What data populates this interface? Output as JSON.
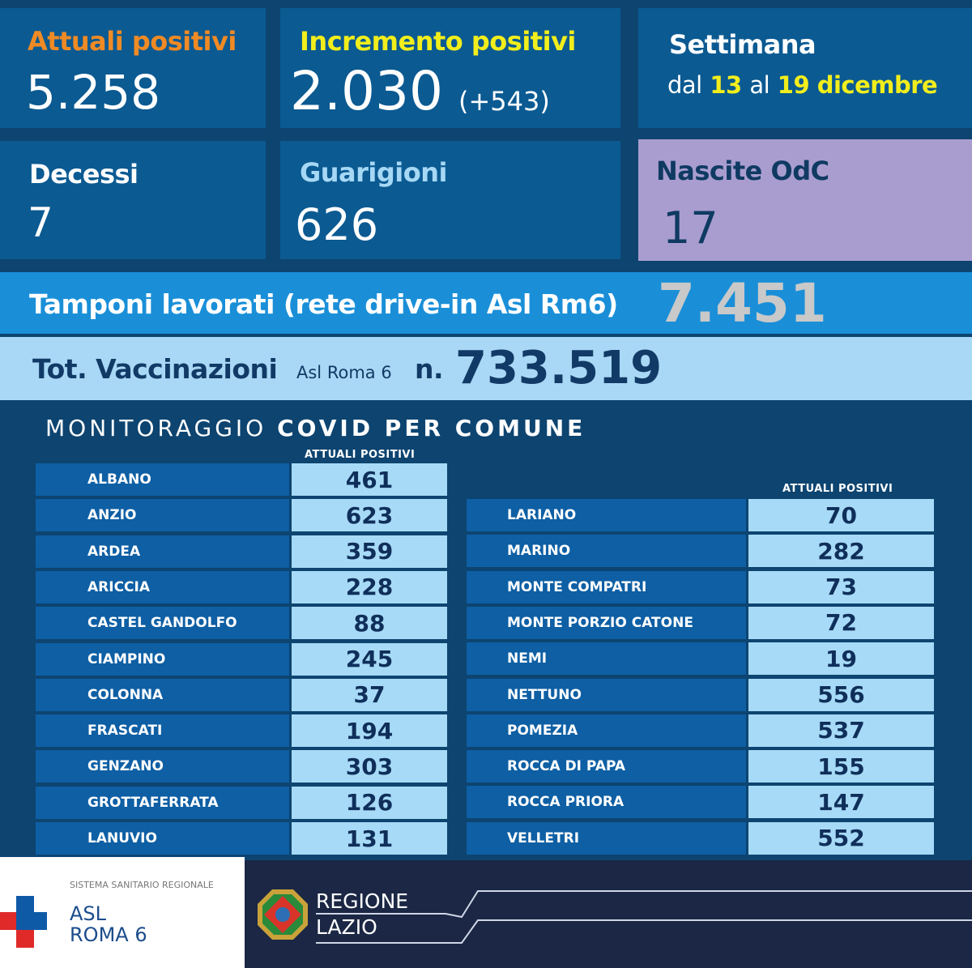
{
  "stats": {
    "attuali": {
      "label": "Attuali positivi",
      "value": "5.258"
    },
    "incremento": {
      "label": "Incremento positivi",
      "value": "2.030",
      "delta": "(+543)"
    },
    "settimana": {
      "label": "Settimana",
      "dal": "dal",
      "from": "13",
      "al": "al",
      "to": "19 dicembre"
    },
    "decessi": {
      "label": "Decessi",
      "value": "7"
    },
    "guarigioni": {
      "label": "Guarigioni",
      "value": "626"
    },
    "nascite": {
      "label": "Nascite OdC",
      "value": "17"
    }
  },
  "tamponi": {
    "label": "Tamponi lavorati (rete drive-in Asl Rm6)",
    "value": "7.451"
  },
  "vaccinazioni": {
    "label": "Tot. Vaccinazioni",
    "sub": "Asl Roma 6",
    "n": "n.",
    "value": "733.519"
  },
  "monitoraggio": {
    "title_light": "MONITORAGGIO",
    "title_bold": "COVID PER COMUNE",
    "col_header": "ATTUALI  POSITIVI",
    "left": [
      [
        "ALBANO",
        "461"
      ],
      [
        "ANZIO",
        "623"
      ],
      [
        "ARDEA",
        "359"
      ],
      [
        "ARICCIA",
        "228"
      ],
      [
        "CASTEL GANDOLFO",
        "88"
      ],
      [
        "CIAMPINO",
        "245"
      ],
      [
        "COLONNA",
        "37"
      ],
      [
        "FRASCATI",
        "194"
      ],
      [
        "GENZANO",
        "303"
      ],
      [
        "GROTTAFERRATA",
        "126"
      ],
      [
        "LANUVIO",
        "131"
      ]
    ],
    "right": [
      [
        "LARIANO",
        "70"
      ],
      [
        "MARINO",
        "282"
      ],
      [
        "MONTE COMPATRI",
        "73"
      ],
      [
        "MONTE PORZIO CATONE",
        "72"
      ],
      [
        "NEMI",
        "19"
      ],
      [
        "NETTUNO",
        "556"
      ],
      [
        "POMEZIA",
        "537"
      ],
      [
        "ROCCA DI PAPA",
        "155"
      ],
      [
        "ROCCA PRIORA",
        "147"
      ],
      [
        "VELLETRI",
        "552"
      ]
    ]
  },
  "footer": {
    "ssr": "SISTEMA SANITARIO REGIONALE",
    "asl1": "ASL",
    "asl2": "ROMA 6",
    "regione1": "REGIONE",
    "regione2": "LAZIO"
  },
  "colors": {
    "orange": "#f08a24",
    "yellow": "#f2ee1c",
    "lightblue": "#a6d8f5",
    "lilac": "#a99dcf",
    "tamponi": "#1a8fd8"
  }
}
